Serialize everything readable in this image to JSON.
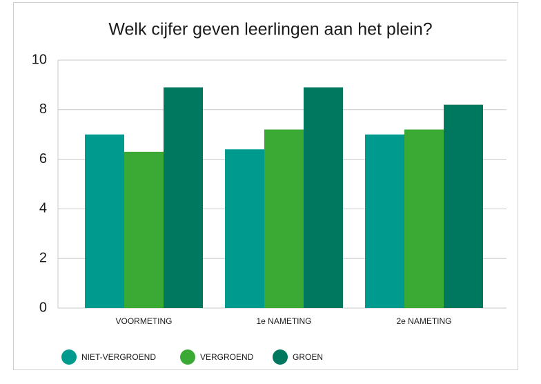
{
  "chart_data": {
    "type": "bar",
    "title": "Welk cijfer geven leerlingen aan het plein?",
    "categories": [
      "VOORMETING",
      "1e NAMETING",
      "2e NAMETING"
    ],
    "series": [
      {
        "name": "NIET-VERGROEND",
        "color": "#009a8e",
        "values": [
          7.0,
          6.4,
          7.0
        ]
      },
      {
        "name": "VERGROEND",
        "color": "#3aaa35",
        "values": [
          6.3,
          7.2,
          7.2
        ]
      },
      {
        "name": "GROEN",
        "color": "#00775f",
        "values": [
          8.9,
          8.9,
          8.2
        ]
      }
    ],
    "ylim": [
      0,
      10
    ],
    "yticks": [
      0,
      2,
      4,
      6,
      8,
      10
    ],
    "grid": true,
    "legend": "bottom"
  }
}
